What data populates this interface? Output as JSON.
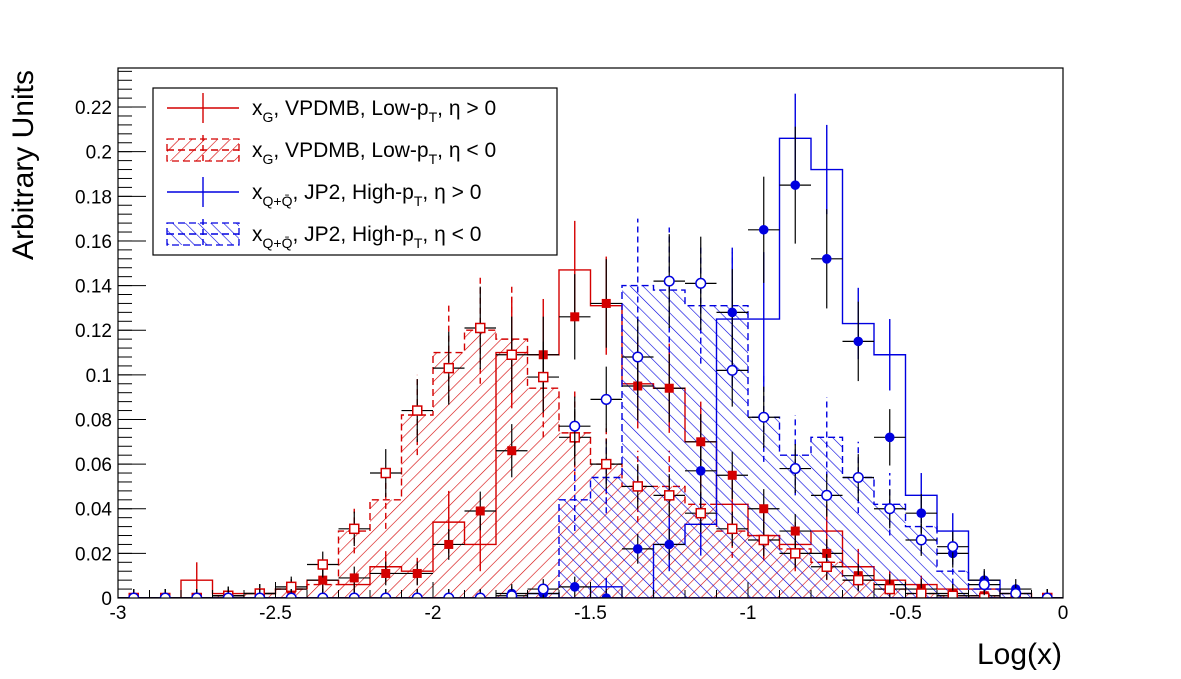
{
  "chart_data": {
    "type": "histogram",
    "title": "",
    "xlabel": "Log(x)",
    "ylabel": "Arbitrary Units",
    "xlim": [
      -3,
      0
    ],
    "ylim": [
      0,
      0.2375
    ],
    "x_ticks": [
      -3,
      -2.5,
      -2,
      -1.5,
      -1,
      -0.5,
      0
    ],
    "x_tick_labels": [
      "-3",
      "-2.5",
      "-2",
      "-1.5",
      "-1",
      "-0.5",
      "0"
    ],
    "y_ticks": [
      0,
      0.02,
      0.04,
      0.06,
      0.08,
      0.1,
      0.12,
      0.14,
      0.16,
      0.18,
      0.2,
      0.22
    ],
    "y_tick_labels": [
      "0",
      "0.02",
      "0.04",
      "0.06",
      "0.08",
      "0.1",
      "0.12",
      "0.14",
      "0.16",
      "0.18",
      "0.2",
      "0.22"
    ],
    "grid": false,
    "legend_position": "top-left",
    "bin_width": 0.1,
    "series": [
      {
        "key": "xg_vpdmb_pos",
        "legend_main": "x",
        "legend_sub": "G",
        "legend_rest": ", VPDMB, Low-p",
        "legend_sub2": "T",
        "legend_tail": ", η > 0",
        "color": "#d40000",
        "style": "solid",
        "fill": "none",
        "hist_x": [
          -2.95,
          -2.85,
          -2.75,
          -2.65,
          -2.55,
          -2.45,
          -2.35,
          -2.25,
          -2.15,
          -2.05,
          -1.95,
          -1.85,
          -1.75,
          -1.65,
          -1.55,
          -1.45,
          -1.35,
          -1.25,
          -1.15,
          -1.05,
          -0.95,
          -0.85,
          -0.75,
          -0.65,
          -0.55,
          -0.45,
          -0.35,
          -0.25,
          -0.15,
          -0.05
        ],
        "hist_y": [
          0.0,
          0.0,
          0.008,
          0.002,
          0.002,
          0.004,
          0.008,
          0.006,
          0.014,
          0.012,
          0.034,
          0.024,
          0.11,
          0.109,
          0.147,
          0.131,
          0.096,
          0.094,
          0.07,
          0.042,
          0.028,
          0.024,
          0.03,
          0.014,
          0.008,
          0.006,
          0.004,
          0.004,
          0.002,
          0.0
        ],
        "hist_err": [
          0.0,
          0.0,
          0.008,
          0.002,
          0.002,
          0.004,
          0.005,
          0.004,
          0.007,
          0.006,
          0.014,
          0.012,
          0.025,
          0.025,
          0.022,
          0.022,
          0.02,
          0.02,
          0.018,
          0.014,
          0.01,
          0.01,
          0.012,
          0.008,
          0.004,
          0.004,
          0.003,
          0.003,
          0.002,
          0.0
        ],
        "marker": "filled-square",
        "points_x": [
          -2.95,
          -2.85,
          -2.75,
          -2.65,
          -2.55,
          -2.45,
          -2.35,
          -2.25,
          -2.15,
          -2.05,
          -1.95,
          -1.85,
          -1.75,
          -1.65,
          -1.55,
          -1.45,
          -1.35,
          -1.25,
          -1.15,
          -1.05,
          -0.95,
          -0.85,
          -0.75,
          -0.65,
          -0.55,
          -0.45,
          -0.35,
          -0.25,
          -0.15,
          -0.05
        ],
        "points_y": [
          0.0,
          0.0,
          0.0,
          0.001,
          0.002,
          0.004,
          0.008,
          0.009,
          0.011,
          0.011,
          0.024,
          0.039,
          0.066,
          0.109,
          0.126,
          0.132,
          0.095,
          0.094,
          0.07,
          0.055,
          0.04,
          0.03,
          0.02,
          0.01,
          0.006,
          0.004,
          0.002,
          0.001,
          0.0,
          0.0
        ]
      },
      {
        "key": "xg_vpdmb_neg",
        "legend_main": "x",
        "legend_sub": "G",
        "legend_rest": ", VPDMB, Low-p",
        "legend_sub2": "T",
        "legend_tail": ", η < 0",
        "color": "#d40000",
        "style": "dashed",
        "fill": "hatch-forward",
        "hist_x": [
          -2.95,
          -2.85,
          -2.75,
          -2.65,
          -2.55,
          -2.45,
          -2.35,
          -2.25,
          -2.15,
          -2.05,
          -1.95,
          -1.85,
          -1.75,
          -1.65,
          -1.55,
          -1.45,
          -1.35,
          -1.25,
          -1.15,
          -1.05,
          -0.95,
          -0.85,
          -0.75,
          -0.65,
          -0.55,
          -0.45,
          -0.35,
          -0.25,
          -0.15,
          -0.05
        ],
        "hist_y": [
          0.0,
          0.0,
          0.0,
          0.001,
          0.002,
          0.004,
          0.006,
          0.03,
          0.044,
          0.082,
          0.11,
          0.12,
          0.116,
          0.094,
          0.074,
          0.06,
          0.05,
          0.05,
          0.042,
          0.03,
          0.028,
          0.022,
          0.016,
          0.008,
          0.004,
          0.002,
          0.001,
          0.001,
          0.0,
          0.0
        ],
        "hist_err": [
          0.0,
          0.0,
          0.0,
          0.001,
          0.002,
          0.003,
          0.004,
          0.01,
          0.013,
          0.018,
          0.022,
          0.024,
          0.024,
          0.022,
          0.02,
          0.018,
          0.016,
          0.016,
          0.015,
          0.012,
          0.011,
          0.01,
          0.008,
          0.005,
          0.003,
          0.002,
          0.001,
          0.001,
          0.0,
          0.0
        ],
        "marker": "open-square",
        "points_x": [
          -2.95,
          -2.85,
          -2.75,
          -2.65,
          -2.55,
          -2.45,
          -2.35,
          -2.25,
          -2.15,
          -2.05,
          -1.95,
          -1.85,
          -1.75,
          -1.65,
          -1.55,
          -1.45,
          -1.35,
          -1.25,
          -1.15,
          -1.05,
          -0.95,
          -0.85,
          -0.75,
          -0.65,
          -0.55,
          -0.45,
          -0.35,
          -0.25,
          -0.15,
          -0.05
        ],
        "points_y": [
          0.0,
          0.0,
          0.0,
          0.001,
          0.002,
          0.005,
          0.015,
          0.031,
          0.056,
          0.084,
          0.103,
          0.121,
          0.109,
          0.099,
          0.072,
          0.06,
          0.05,
          0.046,
          0.038,
          0.031,
          0.026,
          0.02,
          0.014,
          0.008,
          0.004,
          0.002,
          0.001,
          0.0,
          0.0,
          0.0
        ]
      },
      {
        "key": "xq_jp2_pos",
        "legend_main": "x",
        "legend_sub": "Q+Q̄",
        "legend_rest": ", JP2, High-p",
        "legend_sub2": "T",
        "legend_tail": ", η > 0",
        "color": "#0000e0",
        "style": "solid",
        "fill": "none",
        "hist_x": [
          -2.95,
          -2.85,
          -2.75,
          -2.65,
          -2.55,
          -2.45,
          -2.35,
          -2.25,
          -2.15,
          -2.05,
          -1.95,
          -1.85,
          -1.75,
          -1.65,
          -1.55,
          -1.45,
          -1.35,
          -1.25,
          -1.15,
          -1.05,
          -0.95,
          -0.85,
          -0.75,
          -0.65,
          -0.55,
          -0.45,
          -0.35,
          -0.25,
          -0.15,
          -0.05
        ],
        "hist_y": [
          0.0,
          0.0,
          0.0,
          0.0,
          0.0,
          0.0,
          0.0,
          0.0,
          0.0,
          0.0,
          0.0,
          0.0,
          0.0,
          0.002,
          0.0,
          0.005,
          0.0,
          0.024,
          0.033,
          0.125,
          0.125,
          0.206,
          0.192,
          0.123,
          0.109,
          0.046,
          0.03,
          0.008,
          0.0,
          0.0
        ],
        "hist_err": [
          0.0,
          0.0,
          0.0,
          0.0,
          0.0,
          0.0,
          0.0,
          0.0,
          0.0,
          0.0,
          0.0,
          0.0,
          0.0,
          0.002,
          0.0,
          0.004,
          0.0,
          0.012,
          0.014,
          0.03,
          0.03,
          0.02,
          0.02,
          0.016,
          0.016,
          0.01,
          0.008,
          0.004,
          0.0,
          0.0
        ],
        "marker": "filled-circle",
        "points_x": [
          -2.95,
          -2.85,
          -2.75,
          -2.65,
          -2.55,
          -2.45,
          -2.35,
          -2.25,
          -2.15,
          -2.05,
          -1.95,
          -1.85,
          -1.75,
          -1.65,
          -1.55,
          -1.45,
          -1.35,
          -1.25,
          -1.15,
          -1.05,
          -0.95,
          -0.85,
          -0.75,
          -0.65,
          -0.55,
          -0.45,
          -0.35,
          -0.25,
          -0.15,
          -0.05
        ],
        "points_y": [
          0.0,
          0.0,
          0.0,
          0.0,
          0.0,
          0.0,
          0.0,
          0.0,
          0.0,
          0.0,
          0.0,
          0.0,
          0.002,
          0.002,
          0.005,
          0.0,
          0.022,
          0.024,
          0.057,
          0.128,
          0.165,
          0.185,
          0.152,
          0.115,
          0.072,
          0.038,
          0.02,
          0.008,
          0.004,
          0.0
        ]
      },
      {
        "key": "xq_jp2_neg",
        "legend_main": "x",
        "legend_sub": "Q+Q̄",
        "legend_rest": ", JP2, High-p",
        "legend_sub2": "T",
        "legend_tail": ", η < 0",
        "color": "#0000e0",
        "style": "dashed",
        "fill": "hatch-back",
        "hist_x": [
          -2.95,
          -2.85,
          -2.75,
          -2.65,
          -2.55,
          -2.45,
          -2.35,
          -2.25,
          -2.15,
          -2.05,
          -1.95,
          -1.85,
          -1.75,
          -1.65,
          -1.55,
          -1.45,
          -1.35,
          -1.25,
          -1.15,
          -1.05,
          -0.95,
          -0.85,
          -0.75,
          -0.65,
          -0.55,
          -0.45,
          -0.35,
          -0.25,
          -0.15,
          -0.05
        ],
        "hist_y": [
          0.0,
          0.0,
          0.0,
          0.0,
          0.0,
          0.0,
          0.0,
          0.0,
          0.0,
          0.0,
          0.0,
          0.0,
          0.0,
          0.0,
          0.044,
          0.054,
          0.14,
          0.138,
          0.131,
          0.131,
          0.081,
          0.064,
          0.072,
          0.054,
          0.042,
          0.032,
          0.012,
          0.004,
          0.002,
          0.0
        ],
        "hist_err": [
          0.0,
          0.0,
          0.0,
          0.0,
          0.0,
          0.0,
          0.0,
          0.0,
          0.0,
          0.0,
          0.0,
          0.0,
          0.0,
          0.0,
          0.014,
          0.016,
          0.03,
          0.028,
          0.026,
          0.026,
          0.02,
          0.018,
          0.018,
          0.016,
          0.014,
          0.012,
          0.006,
          0.003,
          0.002,
          0.0
        ],
        "marker": "open-circle",
        "points_x": [
          -2.95,
          -2.85,
          -2.75,
          -2.65,
          -2.55,
          -2.45,
          -2.35,
          -2.25,
          -2.15,
          -2.05,
          -1.95,
          -1.85,
          -1.75,
          -1.65,
          -1.55,
          -1.45,
          -1.35,
          -1.25,
          -1.15,
          -1.05,
          -0.95,
          -0.85,
          -0.75,
          -0.65,
          -0.55,
          -0.45,
          -0.35,
          -0.25,
          -0.15,
          -0.05
        ],
        "points_y": [
          0.0,
          0.0,
          0.0,
          0.0,
          0.0,
          0.0,
          0.0,
          0.0,
          0.0,
          0.0,
          0.0,
          0.0,
          0.001,
          0.004,
          0.077,
          0.089,
          0.108,
          0.142,
          0.141,
          0.102,
          0.081,
          0.058,
          0.046,
          0.054,
          0.04,
          0.026,
          0.023,
          0.006,
          0.002,
          0.0
        ]
      }
    ]
  }
}
